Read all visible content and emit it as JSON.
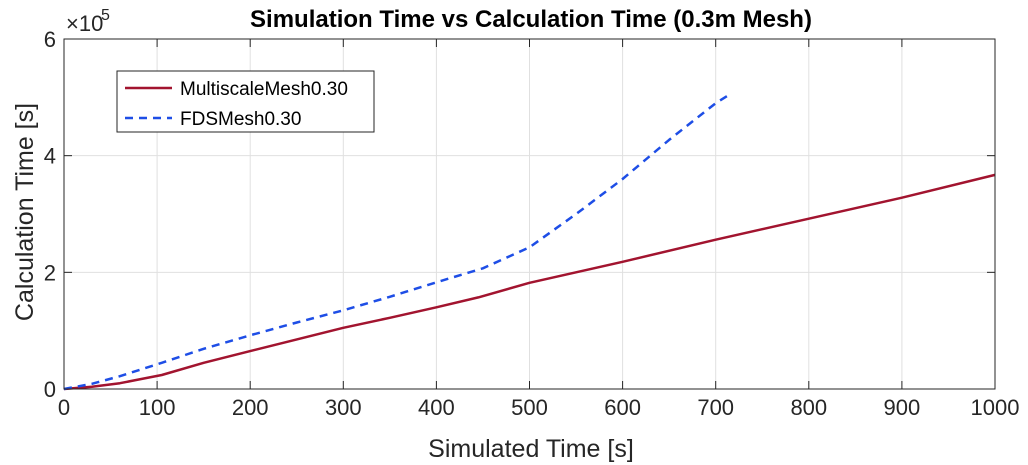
{
  "chart_data": {
    "type": "line",
    "title": "Simulation Time vs Calculation Time (0.3m Mesh)",
    "xlabel": "Simulated Time [s]",
    "ylabel": "Calculation Time [s]",
    "y_exponent_base": "×10",
    "y_exponent_power": "5",
    "xlim": [
      0,
      1000
    ],
    "ylim": [
      0,
      600000
    ],
    "x_ticks": [
      0,
      100,
      200,
      300,
      400,
      500,
      600,
      700,
      800,
      900,
      1000
    ],
    "y_ticks": [
      0,
      200000,
      400000,
      600000
    ],
    "y_tick_labels": [
      "0",
      "2",
      "4",
      "6"
    ],
    "grid": true,
    "legend_position": "top-left",
    "series": [
      {
        "name": "MultiscaleMesh0.30",
        "color": "#a2142f",
        "style": "solid",
        "x": [
          0,
          30,
          60,
          105,
          150,
          200,
          250,
          300,
          350,
          400,
          445,
          500,
          600,
          700,
          800,
          900,
          1000
        ],
        "y": [
          0,
          4000,
          10000,
          24000,
          45000,
          65000,
          85000,
          105000,
          122000,
          140000,
          157000,
          182000,
          218000,
          256000,
          292000,
          328000,
          367000
        ]
      },
      {
        "name": "FDSMesh0.30",
        "color": "#1e4ee6",
        "style": "dashed",
        "x": [
          0,
          30,
          60,
          105,
          150,
          200,
          250,
          300,
          350,
          400,
          450,
          500,
          550,
          600,
          650,
          700,
          712
        ],
        "y": [
          0,
          9000,
          22000,
          45000,
          69000,
          92000,
          114000,
          135000,
          158000,
          183000,
          207000,
          243000,
          300000,
          360000,
          427000,
          490000,
          502000
        ]
      }
    ]
  }
}
